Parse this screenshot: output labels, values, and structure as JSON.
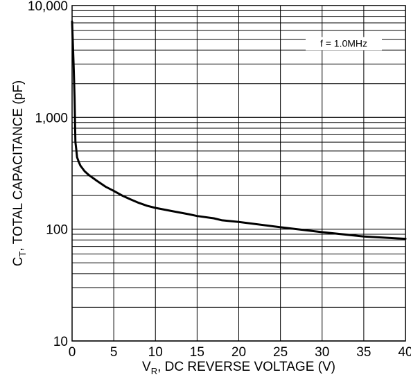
{
  "chart_data": {
    "type": "line",
    "title": "",
    "annotation": "f = 1.0MHz",
    "xlabel": {
      "main": "V",
      "subscript": "R",
      "rest": ", DC REVERSE VOLTAGE (V)"
    },
    "ylabel": {
      "main": "C",
      "subscript": "T",
      "rest": ", TOTAL CAPACITANCE (pF)"
    },
    "xlim": [
      0,
      40
    ],
    "ylim": [
      10,
      10000
    ],
    "yscale": "log",
    "grid": true,
    "x_ticks": [
      "0",
      "5",
      "10",
      "15",
      "20",
      "25",
      "30",
      "35",
      "40"
    ],
    "y_ticks": [
      {
        "value": 10,
        "label": "10"
      },
      {
        "value": 100,
        "label": "100"
      },
      {
        "value": 1000,
        "label": "1,000"
      },
      {
        "value": 10000,
        "label": "10,000"
      }
    ],
    "series": [
      {
        "x": [
          0,
          0.1,
          0.2,
          0.3,
          0.4,
          0.5,
          0.6,
          0.8,
          1,
          1.5,
          2,
          3,
          4,
          5,
          6,
          7,
          8,
          9,
          10,
          12,
          14,
          15,
          17,
          18,
          20,
          25,
          30,
          35,
          40
        ],
        "y": [
          7200,
          4500,
          2700,
          1500,
          600,
          520,
          440,
          400,
          370,
          330,
          305,
          270,
          240,
          220,
          200,
          185,
          172,
          162,
          155,
          145,
          136,
          131,
          125,
          120,
          116,
          104,
          94,
          86,
          82
        ]
      }
    ]
  }
}
